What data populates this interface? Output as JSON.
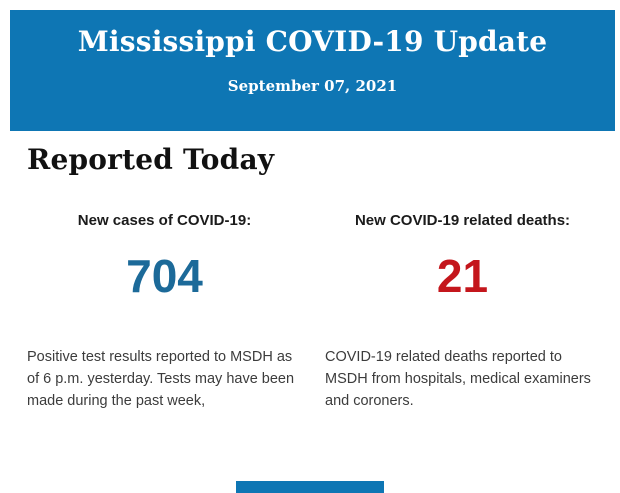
{
  "header": {
    "title": "Mississippi COVID-19 Update",
    "date": "September 07, 2021",
    "background_color": "#0e76b4",
    "text_color": "#ffffff"
  },
  "main": {
    "section_title": "Reported Today",
    "stats": [
      {
        "label": "New cases of COVID-19:",
        "value": "704",
        "value_color": "#1c6a99",
        "description": "Positive test results reported to MSDH as of 6 p.m. yesterday. Tests may have been made during the past week,"
      },
      {
        "label": "New COVID-19 related deaths:",
        "value": "21",
        "value_color": "#c4161c",
        "description": "COVID-19 related deaths reported to MSDH from hospitals, medical examiners and coroners."
      }
    ]
  },
  "footer": {
    "bar_color": "#0e76b4"
  }
}
